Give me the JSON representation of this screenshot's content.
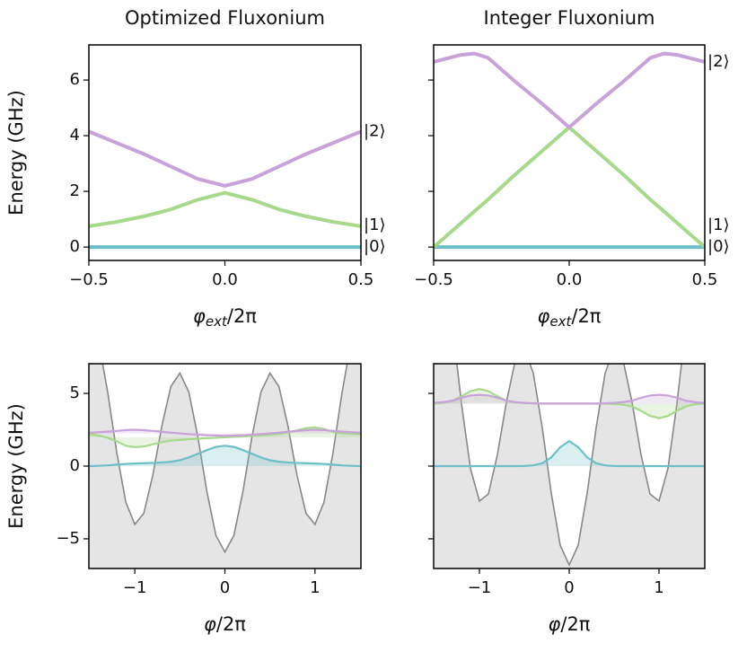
{
  "chart_data": [
    {
      "type": "line",
      "title": "Optimized Fluxonium",
      "ylabel": "Energy (GHz)",
      "xlabel": [
        "φ",
        "ext",
        "/2π"
      ],
      "x": [
        -0.5,
        -0.4,
        -0.3,
        -0.2,
        -0.1,
        0,
        0.1,
        0.2,
        0.3,
        0.4,
        0.5
      ],
      "series": [
        {
          "name": "|0⟩",
          "color": "#6cbfc8",
          "values": [
            0,
            0,
            0,
            0,
            0,
            0,
            0,
            0,
            0,
            0,
            0
          ]
        },
        {
          "name": "|1⟩",
          "color": "#a6d98c",
          "values": [
            0.75,
            0.9,
            1.1,
            1.35,
            1.7,
            1.95,
            1.7,
            1.35,
            1.1,
            0.9,
            0.75
          ]
        },
        {
          "name": "|2⟩",
          "color": "#c8a2d8",
          "values": [
            4.15,
            3.75,
            3.35,
            2.9,
            2.45,
            2.2,
            2.45,
            2.9,
            3.35,
            3.75,
            4.15
          ]
        }
      ],
      "xlim": [
        -0.5,
        0.5
      ],
      "ylim": [
        -0.48,
        7.26
      ],
      "xticks": [
        {
          "value": -0.5,
          "label": "−0.5"
        },
        {
          "value": 0,
          "label": "0.0"
        },
        0.5
      ],
      "yticks": [
        0,
        2,
        4,
        6
      ],
      "ytick_labels": true
    },
    {
      "type": "line",
      "title": "Integer Fluxonium",
      "xlabel": [
        "φ",
        "ext",
        "/2π"
      ],
      "x": [
        -0.5,
        -0.4,
        -0.35,
        -0.3,
        -0.2,
        -0.1,
        0,
        0.1,
        0.2,
        0.3,
        0.35,
        0.4,
        0.5
      ],
      "series": [
        {
          "name": "|0⟩",
          "color": "#6cbfc8",
          "values": [
            0,
            0,
            0,
            0,
            0,
            0,
            0,
            0,
            0,
            0,
            0,
            0,
            0
          ]
        },
        {
          "name": "|1⟩",
          "color": "#a6d98c",
          "values": [
            0,
            0.85,
            1.28,
            1.7,
            2.6,
            3.45,
            4.3,
            3.45,
            2.6,
            1.7,
            1.28,
            0.85,
            0
          ]
        },
        {
          "name": "|2⟩",
          "color": "#c8a2d8",
          "values": [
            6.65,
            6.9,
            6.95,
            6.8,
            5.95,
            5.15,
            4.3,
            5.15,
            5.95,
            6.8,
            6.95,
            6.9,
            6.65
          ]
        }
      ],
      "xlim": [
        -0.5,
        0.5
      ],
      "ylim": [
        -0.48,
        7.26
      ],
      "xticks": [
        {
          "value": -0.5,
          "label": "−0.5"
        },
        {
          "value": 0,
          "label": "0.0"
        },
        0.5
      ],
      "yticks": [
        0,
        2,
        4,
        6
      ],
      "ytick_labels": false
    },
    {
      "type": "wavefunction",
      "ylabel": "Energy (GHz)",
      "xlabel": [
        "φ",
        "",
        "/2π"
      ],
      "x": [
        -1.5,
        -1.4,
        -1.3,
        -1.2,
        -1.1,
        -1.0,
        -0.9,
        -0.8,
        -0.7,
        -0.6,
        -0.5,
        -0.4,
        -0.3,
        -0.2,
        -0.1,
        0,
        0.1,
        0.2,
        0.3,
        0.4,
        0.5,
        0.6,
        0.7,
        0.8,
        0.9,
        1.0,
        1.1,
        1.2,
        1.3,
        1.4,
        1.5
      ],
      "potential": {
        "color": "#888888",
        "fill": "#e5e5e5",
        "values": [
          10.19,
          8.51,
          5.04,
          0.91,
          -2.48,
          -4.01,
          -3.24,
          -0.61,
          2.76,
          5.47,
          6.39,
          5.09,
          2.0,
          -1.75,
          -4.76,
          -5.91,
          -4.76,
          -1.75,
          2.0,
          5.09,
          6.39,
          5.47,
          2.76,
          -0.61,
          -3.24,
          -4.01,
          -2.48,
          0.91,
          5.04,
          8.51,
          10.19
        ]
      },
      "series": [
        {
          "color": "#6cbfc8",
          "level": 0,
          "values": [
            0,
            0.02,
            0.05,
            0.1,
            0.15,
            0.18,
            0.2,
            0.22,
            0.25,
            0.3,
            0.4,
            0.6,
            0.85,
            1.1,
            1.32,
            1.4,
            1.32,
            1.1,
            0.85,
            0.6,
            0.4,
            0.3,
            0.25,
            0.22,
            0.2,
            0.18,
            0.15,
            0.1,
            0.05,
            0.02,
            0
          ]
        },
        {
          "color": "#a6d98c",
          "level": 1.98,
          "values": [
            2.2,
            2.1,
            1.95,
            1.7,
            1.4,
            1.3,
            1.35,
            1.5,
            1.65,
            1.75,
            1.8,
            1.85,
            1.88,
            1.92,
            1.95,
            1.98,
            2.01,
            2.04,
            2.08,
            2.11,
            2.16,
            2.21,
            2.31,
            2.46,
            2.61,
            2.66,
            2.56,
            2.35,
            2.25,
            2.22,
            2.2
          ]
        },
        {
          "color": "#c8a2d8",
          "level": 2.25,
          "values": [
            2.3,
            2.33,
            2.37,
            2.42,
            2.48,
            2.5,
            2.47,
            2.42,
            2.36,
            2.3,
            2.25,
            2.2,
            2.16,
            2.12,
            2.1,
            2.08,
            2.1,
            2.12,
            2.16,
            2.2,
            2.25,
            2.3,
            2.36,
            2.42,
            2.47,
            2.5,
            2.48,
            2.42,
            2.37,
            2.33,
            2.3
          ]
        }
      ],
      "xlim": [
        -1.51,
        1.51
      ],
      "ylim": [
        -7.04,
        7.04
      ],
      "xticks": [
        {
          "value": -1,
          "label": "−1"
        },
        0,
        1
      ],
      "yticks": [
        {
          "value": -5,
          "label": "−5"
        },
        0,
        5
      ],
      "ytick_labels": true
    },
    {
      "type": "wavefunction",
      "xlabel": [
        "φ",
        "",
        "/2π"
      ],
      "x": [
        -1.5,
        -1.4,
        -1.3,
        -1.2,
        -1.1,
        -1.0,
        -0.9,
        -0.8,
        -0.7,
        -0.6,
        -0.5,
        -0.4,
        -0.3,
        -0.2,
        -0.1,
        0,
        0.1,
        0.2,
        0.3,
        0.4,
        0.5,
        0.6,
        0.7,
        0.8,
        0.9,
        1.0,
        1.1,
        1.2,
        1.3,
        1.4,
        1.5
      ],
      "potential": {
        "color": "#888888",
        "fill": "#e5e5e5",
        "values": [
          16.9,
          14.31,
          9.67,
          4.3,
          -0.16,
          -2.4,
          -1.92,
          0.78,
          4.39,
          7.27,
          8.1,
          6.39,
          2.63,
          -1.86,
          -5.44,
          -6.8,
          -5.44,
          -1.86,
          2.63,
          6.39,
          8.1,
          7.27,
          4.39,
          0.78,
          -1.92,
          -2.4,
          -0.16,
          4.3,
          9.67,
          14.31,
          16.9
        ]
      },
      "series": [
        {
          "color": "#6cbfc8",
          "level": 0,
          "values": [
            0,
            0,
            0,
            0,
            0,
            0,
            0,
            0,
            0,
            0,
            0.01,
            0.05,
            0.2,
            0.6,
            1.3,
            1.72,
            1.3,
            0.6,
            0.2,
            0.05,
            0.01,
            0,
            0,
            0,
            0,
            0,
            0,
            0,
            0,
            0,
            0
          ]
        },
        {
          "color": "#a6d98c",
          "level": 4.3,
          "values": [
            4.3,
            4.35,
            4.5,
            4.8,
            5.15,
            5.3,
            5.15,
            4.8,
            4.5,
            4.38,
            4.33,
            4.31,
            4.3,
            4.3,
            4.3,
            4.3,
            4.3,
            4.3,
            4.3,
            4.29,
            4.27,
            4.22,
            4.1,
            3.8,
            3.45,
            3.3,
            3.45,
            3.8,
            4.1,
            4.25,
            4.3
          ]
        },
        {
          "color": "#c8a2d8",
          "level": 4.3,
          "values": [
            4.35,
            4.4,
            4.5,
            4.7,
            4.85,
            4.9,
            4.85,
            4.7,
            4.5,
            4.4,
            4.35,
            4.32,
            4.3,
            4.3,
            4.3,
            4.3,
            4.3,
            4.3,
            4.3,
            4.32,
            4.35,
            4.4,
            4.5,
            4.7,
            4.85,
            4.9,
            4.85,
            4.7,
            4.5,
            4.4,
            4.35
          ]
        }
      ],
      "xlim": [
        -1.51,
        1.51
      ],
      "ylim": [
        -7.04,
        7.04
      ],
      "xticks": [
        {
          "value": -1,
          "label": "−1"
        },
        0,
        1
      ],
      "yticks": [
        {
          "value": -5,
          "label": "−5"
        },
        0,
        5
      ],
      "ytick_labels": false
    }
  ]
}
